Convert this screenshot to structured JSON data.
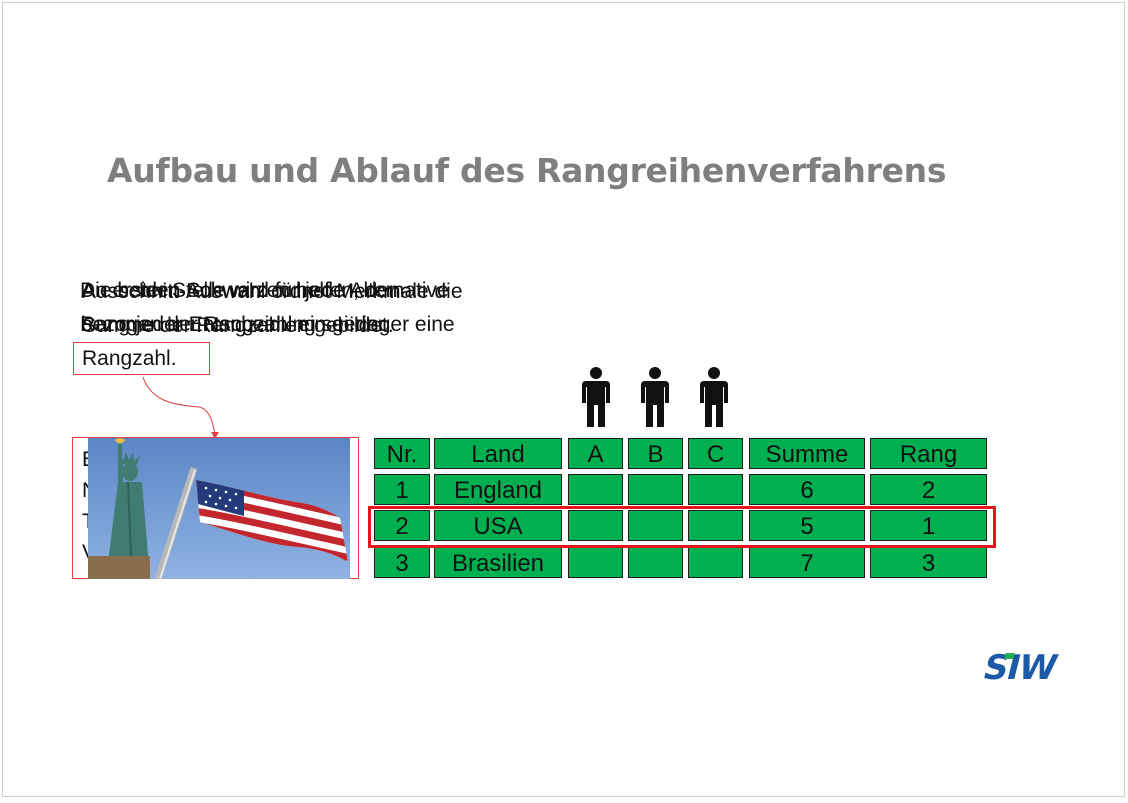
{
  "title": "Aufbau und Ablauf des Rangreihenverfahrens",
  "text_layers": [
    [
      "Die beiden Schwarzen helfen, den",
      "Rang jeder Entscheidung sei der"
    ],
    [
      "An erster Stelle wird für jede Alternative",
      "bezogen der Rangzahl ein geringer eine"
    ],
    [
      "Ausschnitt-Auswahl ordnet Merkmale die",
      "Summe der Rangzahlen gebildet."
    ]
  ],
  "callout_text": "Rangzahl.",
  "hidden_lines": [
    "E",
    "N",
    "T",
    "V"
  ],
  "table": {
    "headers": [
      "Nr.",
      "Land",
      "A",
      "B",
      "C",
      "Summe",
      "Rang"
    ],
    "rows": [
      [
        "1",
        "England",
        "",
        "",
        "",
        "6",
        "2"
      ],
      [
        "2",
        "USA",
        "",
        "",
        "",
        "5",
        "1"
      ],
      [
        "3",
        "Brasilien",
        "",
        "",
        "",
        "7",
        "3"
      ]
    ]
  },
  "persons": [
    "A",
    "B",
    "C"
  ],
  "logo_text": "SIW",
  "colors": {
    "cell_green": "#00b050",
    "highlight_red": "#e8131b",
    "logo_blue": "#1c5aa8",
    "title_gray": "#7f7f7f"
  }
}
